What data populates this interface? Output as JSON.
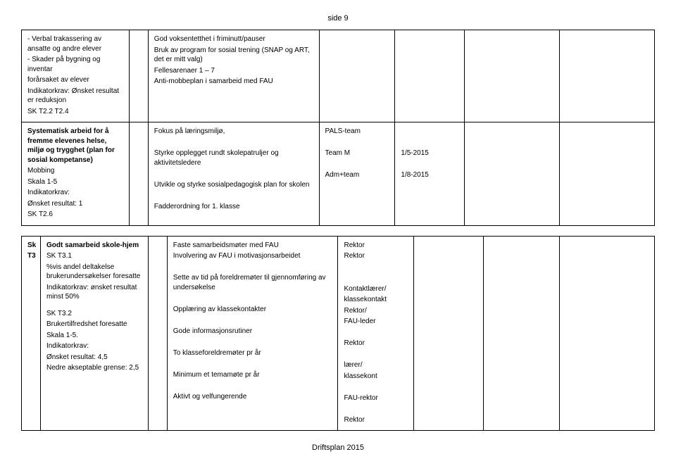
{
  "page_header": "side 9",
  "footer": "Driftsplan 2015",
  "table1": {
    "row1": {
      "c1_lines": [
        "- Verbal trakassering av ansatte og andre elever",
        "- Skader på bygning og inventar",
        "forårsaket av elever",
        "Indikatorkrav: Ønsket resultat er reduksjon",
        "SK T2.2 T2.4"
      ],
      "c3_lines": [
        "God voksentetthet i friminutt/pauser",
        "Bruk av program for sosial trening (SNAP og ART, det er mitt valg)",
        "Fellesarenaer 1 – 7",
        "Anti-mobbeplan i samarbeid med FAU"
      ]
    },
    "row2": {
      "c1_bold": "Systematisk arbeid for å fremme elevenes helse, miljø og trygghet (plan for sosial kompetanse)",
      "c1_rest": [
        "Mobbing",
        "Skala 1-5",
        "Indikatorkrav:",
        "Ønsket resultat: 1",
        "SK T2.6"
      ],
      "c3_lines": [
        "Fokus på læringsmiljø,",
        "",
        "Styrke opplegget rundt skolepatruljer og aktivitetsledere",
        "",
        "Utvikle og styrke sosialpedagogisk plan for skolen",
        "",
        "Fadderordning for 1. klasse"
      ],
      "c4_lines": [
        "PALS-team",
        "",
        "Team M",
        "",
        "Adm+team"
      ],
      "c5_lines": [
        "",
        "",
        "1/5-2015",
        "",
        "1/8-2015"
      ]
    }
  },
  "table2": {
    "row1": {
      "c0a": "Sk",
      "c0b": "T3",
      "c1_bold": "Godt samarbeid skole-hjem",
      "c1_block1": [
        "SK T3.1",
        "%vis andel deltakelse brukerundersøkelser foresatte",
        "Indikatorkrav: ønsket resultat minst 50%"
      ],
      "c1_block2": [
        "SK T3.2",
        "Brukertilfredshet foresatte",
        "Skala 1-5.",
        "Indikatorkrav:",
        "Ønsket resultat: 4,5",
        "Nedre akseptable grense: 2,5"
      ],
      "c3_lines": [
        "Faste samarbeidsmøter med FAU",
        "Involvering av FAU i motivasjonsarbeidet",
        "",
        "Sette av tid på foreldremøter til gjennomføring av undersøkelse",
        "",
        "Opplæring av klassekontakter",
        "",
        "Gode informasjonsrutiner",
        "",
        "To klasseforeldremøter pr år",
        "",
        "Minimum et temamøte pr år",
        "",
        "Aktivt og velfungerende"
      ],
      "c4_lines": [
        "Rektor",
        "Rektor",
        "",
        "",
        "Kontaktlærer/",
        "klassekontakt",
        "Rektor/",
        "FAU-leder",
        "",
        "Rektor",
        "",
        "lærer/",
        "klassekont",
        "",
        "FAU-rektor",
        "",
        "Rektor"
      ]
    }
  }
}
